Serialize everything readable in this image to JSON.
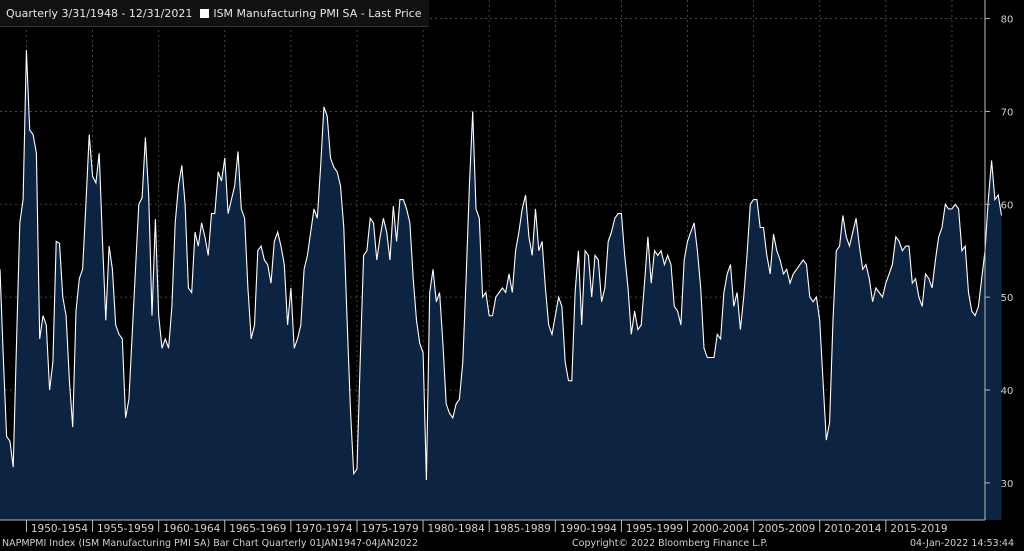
{
  "header": {
    "period": "Quarterly 3/31/1948 - 12/31/2021",
    "series_label": "ISM Manufacturing PMI SA - Last Price"
  },
  "footer": {
    "left": "NAPMPMI Index (ISM Manufacturing PMI SA) Bar Chart  Quarterly 01JAN1947-04JAN2022",
    "center": "Copyright© 2022 Bloomberg Finance L.P.",
    "right": "04-Jan-2022 14:53:44"
  },
  "colors": {
    "background": "#000000",
    "fill": "#0d2342",
    "line": "#ffffff",
    "grid": "#555555",
    "text": "#d0d0d0"
  },
  "chart_data": {
    "type": "area",
    "series": [
      {
        "name": "ISM Manufacturing PMI SA - Last Price"
      }
    ],
    "ylim": [
      26,
      82
    ],
    "yticks": [
      30,
      40,
      50,
      60,
      70,
      80
    ],
    "xlim": [
      1948.0,
      2022.5
    ],
    "x_ticks": [
      "1950-1954",
      "1955-1959",
      "1960-1964",
      "1965-1969",
      "1970-1974",
      "1975-1979",
      "1980-1984",
      "1985-1989",
      "1990-1994",
      "1995-1999",
      "2000-2004",
      "2005-2009",
      "2010-2014",
      "2015-2019"
    ],
    "grid": true,
    "y_axis_position": "right",
    "points": [
      [
        1948.0,
        53.0
      ],
      [
        1948.25,
        43.5
      ],
      [
        1948.5,
        35.0
      ],
      [
        1948.75,
        34.5
      ],
      [
        1949.0,
        31.7
      ],
      [
        1949.25,
        45.0
      ],
      [
        1949.5,
        58.0
      ],
      [
        1949.75,
        60.5
      ],
      [
        1950.0,
        76.6
      ],
      [
        1950.25,
        68.0
      ],
      [
        1950.5,
        67.5
      ],
      [
        1950.75,
        65.5
      ],
      [
        1951.0,
        45.5
      ],
      [
        1951.25,
        48.0
      ],
      [
        1951.5,
        47.0
      ],
      [
        1951.75,
        40.0
      ],
      [
        1952.0,
        43.0
      ],
      [
        1952.25,
        56.0
      ],
      [
        1952.5,
        55.8
      ],
      [
        1952.75,
        50.0
      ],
      [
        1953.0,
        48.0
      ],
      [
        1953.25,
        41.0
      ],
      [
        1953.5,
        36.0
      ],
      [
        1953.75,
        48.5
      ],
      [
        1954.0,
        52.0
      ],
      [
        1954.25,
        53.0
      ],
      [
        1954.5,
        60.0
      ],
      [
        1954.75,
        67.5
      ],
      [
        1955.0,
        63.0
      ],
      [
        1955.25,
        62.3
      ],
      [
        1955.5,
        65.5
      ],
      [
        1955.75,
        56.0
      ],
      [
        1956.0,
        47.5
      ],
      [
        1956.25,
        55.5
      ],
      [
        1956.5,
        53.0
      ],
      [
        1956.75,
        47.0
      ],
      [
        1957.0,
        46.0
      ],
      [
        1957.25,
        45.5
      ],
      [
        1957.5,
        37.0
      ],
      [
        1957.75,
        39.0
      ],
      [
        1958.0,
        46.0
      ],
      [
        1958.25,
        53.0
      ],
      [
        1958.5,
        60.0
      ],
      [
        1958.75,
        60.7
      ],
      [
        1959.0,
        67.2
      ],
      [
        1959.25,
        61.0
      ],
      [
        1959.5,
        48.0
      ],
      [
        1959.75,
        58.4
      ],
      [
        1960.0,
        48.0
      ],
      [
        1960.25,
        44.5
      ],
      [
        1960.5,
        45.5
      ],
      [
        1960.75,
        44.5
      ],
      [
        1961.0,
        49.0
      ],
      [
        1961.25,
        58.0
      ],
      [
        1961.5,
        62.0
      ],
      [
        1961.75,
        64.2
      ],
      [
        1962.0,
        60.0
      ],
      [
        1962.25,
        51.0
      ],
      [
        1962.5,
        50.5
      ],
      [
        1962.75,
        57.0
      ],
      [
        1963.0,
        55.5
      ],
      [
        1963.25,
        58.0
      ],
      [
        1963.5,
        56.5
      ],
      [
        1963.75,
        54.5
      ],
      [
        1964.0,
        59.0
      ],
      [
        1964.25,
        59.0
      ],
      [
        1964.5,
        63.5
      ],
      [
        1964.75,
        62.5
      ],
      [
        1965.0,
        65.0
      ],
      [
        1965.25,
        59.0
      ],
      [
        1965.5,
        60.5
      ],
      [
        1965.75,
        62.0
      ],
      [
        1966.0,
        65.7
      ],
      [
        1966.25,
        59.5
      ],
      [
        1966.5,
        58.5
      ],
      [
        1966.75,
        51.0
      ],
      [
        1967.0,
        45.5
      ],
      [
        1967.25,
        47.0
      ],
      [
        1967.5,
        55.0
      ],
      [
        1967.75,
        55.5
      ],
      [
        1968.0,
        54.0
      ],
      [
        1968.25,
        53.5
      ],
      [
        1968.5,
        51.5
      ],
      [
        1968.75,
        56.0
      ],
      [
        1969.0,
        57.0
      ],
      [
        1969.25,
        55.5
      ],
      [
        1969.5,
        53.5
      ],
      [
        1969.75,
        47.0
      ],
      [
        1970.0,
        51.0
      ],
      [
        1970.25,
        44.5
      ],
      [
        1970.5,
        45.5
      ],
      [
        1970.75,
        47.0
      ],
      [
        1971.0,
        53.0
      ],
      [
        1971.25,
        54.5
      ],
      [
        1971.5,
        57.0
      ],
      [
        1971.75,
        59.5
      ],
      [
        1972.0,
        58.5
      ],
      [
        1972.25,
        64.0
      ],
      [
        1972.5,
        70.5
      ],
      [
        1972.75,
        69.5
      ],
      [
        1973.0,
        65.0
      ],
      [
        1973.25,
        64.0
      ],
      [
        1973.5,
        63.5
      ],
      [
        1973.75,
        62.0
      ],
      [
        1974.0,
        57.5
      ],
      [
        1974.25,
        47.5
      ],
      [
        1974.5,
        38.0
      ],
      [
        1974.75,
        31.0
      ],
      [
        1975.0,
        31.5
      ],
      [
        1975.25,
        43.5
      ],
      [
        1975.5,
        54.5
      ],
      [
        1975.75,
        55.0
      ],
      [
        1976.0,
        58.5
      ],
      [
        1976.25,
        58.0
      ],
      [
        1976.5,
        54.0
      ],
      [
        1976.75,
        56.5
      ],
      [
        1977.0,
        58.5
      ],
      [
        1977.25,
        57.0
      ],
      [
        1977.5,
        54.0
      ],
      [
        1977.75,
        59.8
      ],
      [
        1978.0,
        56.0
      ],
      [
        1978.25,
        60.5
      ],
      [
        1978.5,
        60.5
      ],
      [
        1978.75,
        59.5
      ],
      [
        1979.0,
        58.0
      ],
      [
        1979.25,
        52.0
      ],
      [
        1979.5,
        47.5
      ],
      [
        1979.75,
        45.0
      ],
      [
        1980.0,
        44.0
      ],
      [
        1980.25,
        30.3
      ],
      [
        1980.5,
        50.5
      ],
      [
        1980.75,
        53.0
      ],
      [
        1981.0,
        49.5
      ],
      [
        1981.25,
        50.5
      ],
      [
        1981.5,
        45.0
      ],
      [
        1981.75,
        38.5
      ],
      [
        1982.0,
        37.5
      ],
      [
        1982.25,
        37.0
      ],
      [
        1982.5,
        38.5
      ],
      [
        1982.75,
        39.0
      ],
      [
        1983.0,
        43.0
      ],
      [
        1983.25,
        52.0
      ],
      [
        1983.5,
        62.0
      ],
      [
        1983.75,
        70.0
      ],
      [
        1984.0,
        59.5
      ],
      [
        1984.25,
        58.5
      ],
      [
        1984.5,
        50.0
      ],
      [
        1984.75,
        50.5
      ],
      [
        1985.0,
        48.0
      ],
      [
        1985.25,
        48.0
      ],
      [
        1985.5,
        50.0
      ],
      [
        1985.75,
        50.5
      ],
      [
        1986.0,
        51.0
      ],
      [
        1986.25,
        50.5
      ],
      [
        1986.5,
        52.5
      ],
      [
        1986.75,
        50.5
      ],
      [
        1987.0,
        55.0
      ],
      [
        1987.25,
        57.0
      ],
      [
        1987.5,
        59.5
      ],
      [
        1987.75,
        61.0
      ],
      [
        1988.0,
        56.5
      ],
      [
        1988.25,
        54.5
      ],
      [
        1988.5,
        59.5
      ],
      [
        1988.75,
        55.0
      ],
      [
        1989.0,
        56.0
      ],
      [
        1989.25,
        51.0
      ],
      [
        1989.5,
        47.0
      ],
      [
        1989.75,
        46.0
      ],
      [
        1990.0,
        48.0
      ],
      [
        1990.25,
        50.0
      ],
      [
        1990.5,
        49.0
      ],
      [
        1990.75,
        43.0
      ],
      [
        1991.0,
        41.0
      ],
      [
        1991.25,
        41.0
      ],
      [
        1991.5,
        50.5
      ],
      [
        1991.75,
        55.0
      ],
      [
        1992.0,
        47.0
      ],
      [
        1992.25,
        55.0
      ],
      [
        1992.5,
        54.5
      ],
      [
        1992.75,
        50.0
      ],
      [
        1993.0,
        54.5
      ],
      [
        1993.25,
        54.0
      ],
      [
        1993.5,
        49.5
      ],
      [
        1993.75,
        51.0
      ],
      [
        1994.0,
        56.0
      ],
      [
        1994.25,
        57.0
      ],
      [
        1994.5,
        58.5
      ],
      [
        1994.75,
        59.0
      ],
      [
        1995.0,
        59.0
      ],
      [
        1995.25,
        54.5
      ],
      [
        1995.5,
        51.0
      ],
      [
        1995.75,
        46.0
      ],
      [
        1996.0,
        48.5
      ],
      [
        1996.25,
        46.5
      ],
      [
        1996.5,
        47.0
      ],
      [
        1996.75,
        51.5
      ],
      [
        1997.0,
        56.5
      ],
      [
        1997.25,
        51.5
      ],
      [
        1997.5,
        55.0
      ],
      [
        1997.75,
        54.5
      ],
      [
        1998.0,
        55.0
      ],
      [
        1998.25,
        53.5
      ],
      [
        1998.5,
        54.5
      ],
      [
        1998.75,
        53.5
      ],
      [
        1999.0,
        49.0
      ],
      [
        1999.25,
        48.5
      ],
      [
        1999.5,
        47.0
      ],
      [
        1999.75,
        54.0
      ],
      [
        2000.0,
        56.0
      ],
      [
        2000.25,
        57.0
      ],
      [
        2000.5,
        58.0
      ],
      [
        2000.75,
        55.0
      ],
      [
        2001.0,
        51.0
      ],
      [
        2001.25,
        44.5
      ],
      [
        2001.5,
        43.5
      ],
      [
        2001.75,
        43.5
      ],
      [
        2002.0,
        43.5
      ],
      [
        2002.25,
        46.0
      ],
      [
        2002.5,
        45.5
      ],
      [
        2002.75,
        50.5
      ],
      [
        2003.0,
        52.5
      ],
      [
        2003.25,
        53.5
      ],
      [
        2003.5,
        49.0
      ],
      [
        2003.75,
        50.5
      ],
      [
        2004.0,
        46.5
      ],
      [
        2004.25,
        50.0
      ],
      [
        2004.5,
        54.5
      ],
      [
        2004.75,
        60.0
      ],
      [
        2005.0,
        60.5
      ],
      [
        2005.25,
        60.5
      ],
      [
        2005.5,
        57.5
      ],
      [
        2005.75,
        57.5
      ],
      [
        2006.0,
        54.5
      ],
      [
        2006.25,
        52.5
      ],
      [
        2006.5,
        56.8
      ],
      [
        2006.75,
        55.0
      ],
      [
        2007.0,
        54.0
      ],
      [
        2007.25,
        52.5
      ],
      [
        2007.5,
        53.0
      ],
      [
        2007.75,
        51.5
      ],
      [
        2008.0,
        52.5
      ],
      [
        2008.25,
        53.0
      ],
      [
        2008.5,
        53.5
      ],
      [
        2008.75,
        54.0
      ],
      [
        2009.0,
        53.5
      ],
      [
        2009.25,
        50.0
      ],
      [
        2009.5,
        49.5
      ],
      [
        2009.75,
        50.0
      ],
      [
        2010.0,
        47.5
      ],
      [
        2010.25,
        41.0
      ],
      [
        2010.5,
        34.6
      ],
      [
        2010.75,
        36.5
      ],
      [
        2011.0,
        47.5
      ],
      [
        2011.25,
        55.0
      ],
      [
        2011.5,
        55.5
      ],
      [
        2011.75,
        58.8
      ],
      [
        2012.0,
        56.5
      ],
      [
        2012.25,
        55.5
      ],
      [
        2012.5,
        57.0
      ],
      [
        2012.75,
        58.5
      ],
      [
        2013.0,
        55.5
      ],
      [
        2013.25,
        53.0
      ],
      [
        2013.5,
        53.5
      ],
      [
        2013.75,
        52.0
      ],
      [
        2014.0,
        49.5
      ],
      [
        2014.25,
        51.0
      ],
      [
        2014.5,
        50.5
      ],
      [
        2014.75,
        50.0
      ],
      [
        2015.0,
        51.5
      ],
      [
        2015.25,
        52.5
      ],
      [
        2015.5,
        53.5
      ],
      [
        2015.75,
        56.5
      ],
      [
        2016.0,
        56.0
      ],
      [
        2016.25,
        55.0
      ],
      [
        2016.5,
        55.5
      ],
      [
        2016.75,
        55.5
      ],
      [
        2017.0,
        51.5
      ],
      [
        2017.25,
        52.0
      ],
      [
        2017.5,
        50.0
      ],
      [
        2017.75,
        49.0
      ],
      [
        2018.0,
        52.5
      ],
      [
        2018.25,
        52.0
      ],
      [
        2018.5,
        51.0
      ],
      [
        2018.75,
        54.0
      ],
      [
        2019.0,
        56.5
      ],
      [
        2019.25,
        57.5
      ],
      [
        2019.5,
        60.0
      ],
      [
        2019.75,
        59.5
      ],
      [
        2020.0,
        59.5
      ],
      [
        2020.25,
        60.0
      ],
      [
        2020.5,
        59.5
      ],
      [
        2020.75,
        55.0
      ],
      [
        2021.0,
        55.5
      ],
      [
        2021.25,
        50.5
      ],
      [
        2021.5,
        48.5
      ],
      [
        2021.75,
        48.0
      ],
      [
        2022.0,
        49.0
      ],
      [
        2022.25,
        52.0
      ],
      [
        2022.5,
        55.0
      ],
      [
        2022.75,
        60.5
      ],
      [
        2023.0,
        64.7
      ],
      [
        2023.25,
        60.5
      ],
      [
        2023.5,
        61.0
      ],
      [
        2023.75,
        58.8
      ]
    ]
  }
}
